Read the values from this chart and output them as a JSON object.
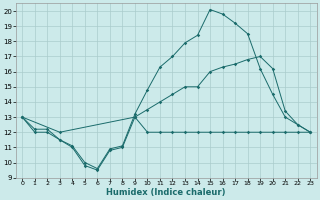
{
  "title": "",
  "xlabel": "Humidex (Indice chaleur)",
  "ylabel": "",
  "bg_color": "#cceaea",
  "grid_color": "#aacccc",
  "line_color": "#1a6b6b",
  "xlim": [
    -0.5,
    23.5
  ],
  "ylim": [
    9,
    20.5
  ],
  "xticks": [
    0,
    1,
    2,
    3,
    4,
    5,
    6,
    7,
    8,
    9,
    10,
    11,
    12,
    13,
    14,
    15,
    16,
    17,
    18,
    19,
    20,
    21,
    22,
    23
  ],
  "yticks": [
    9,
    10,
    11,
    12,
    13,
    14,
    15,
    16,
    17,
    18,
    19,
    20
  ],
  "line1_x": [
    0,
    1,
    2,
    3,
    4,
    5,
    6,
    7,
    8,
    9,
    10,
    11,
    12,
    13,
    14,
    15,
    16,
    17,
    18,
    19,
    20,
    21,
    22,
    23
  ],
  "line1_y": [
    13,
    12,
    12,
    11.5,
    11,
    9.8,
    9.5,
    10.8,
    11,
    13,
    12,
    12,
    12,
    12,
    12,
    12,
    12,
    12,
    12,
    12,
    12,
    12,
    12,
    12
  ],
  "line2_x": [
    0,
    3,
    9,
    10,
    11,
    12,
    13,
    14,
    15,
    16,
    17,
    18,
    19,
    20,
    21,
    22,
    23
  ],
  "line2_y": [
    13,
    12,
    13,
    13.5,
    14,
    14.5,
    15,
    15,
    16,
    16.3,
    16.5,
    16.8,
    17,
    16.2,
    13.4,
    12.5,
    12
  ],
  "line3_x": [
    0,
    1,
    2,
    3,
    4,
    5,
    6,
    7,
    8,
    9,
    10,
    11,
    12,
    13,
    14,
    15,
    16,
    17,
    18,
    19,
    20,
    21,
    22,
    23
  ],
  "line3_y": [
    13,
    12.2,
    12.2,
    11.5,
    11.1,
    10,
    9.6,
    10.9,
    11.1,
    13.2,
    14.8,
    16.3,
    17,
    17.9,
    18.4,
    20.1,
    19.8,
    19.2,
    18.5,
    16.2,
    14.5,
    13.0,
    12.5,
    12
  ]
}
